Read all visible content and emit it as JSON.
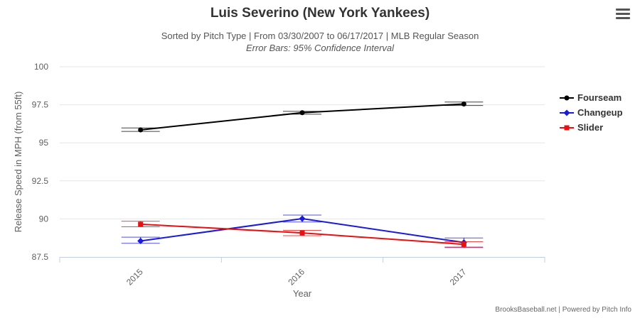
{
  "header": {
    "title": "Luis Severino (New York Yankees)",
    "subtitle": "Sorted by Pitch Type | From 03/30/2007 to 06/17/2017 | MLB Regular Season",
    "subtitle2": "Error Bars: 95% Confidence Interval"
  },
  "menu": {
    "icon": "hamburger-menu-icon"
  },
  "credits": "BrooksBaseball.net | Powered by Pitch Info",
  "chart_data": {
    "type": "line",
    "title": "Luis Severino (New York Yankees)",
    "xlabel": "Year",
    "ylabel": "Release Speed in MPH (from 55ft)",
    "categories": [
      "2015",
      "2016",
      "2017"
    ],
    "ylim": [
      87.5,
      100
    ],
    "yticks": [
      87.5,
      90,
      92.5,
      95,
      97.5,
      100
    ],
    "ytick_labels": [
      "87.5",
      "90",
      "92.5",
      "95",
      "97.5",
      "100"
    ],
    "grid": true,
    "legend_position": "right",
    "series": [
      {
        "name": "Fourseam",
        "color": "#000000",
        "marker": "circle",
        "values": [
          95.85,
          96.98,
          97.55
        ],
        "err_low": [
          95.75,
          96.88,
          97.45
        ],
        "err_high": [
          95.98,
          97.07,
          97.68
        ]
      },
      {
        "name": "Changeup",
        "color": "#1a1adb",
        "marker": "diamond",
        "values": [
          88.55,
          90.02,
          88.45
        ],
        "err_low": [
          88.4,
          89.8,
          88.15
        ],
        "err_high": [
          88.8,
          90.25,
          88.75
        ]
      },
      {
        "name": "Slider",
        "color": "#e81010",
        "marker": "square",
        "values": [
          89.65,
          89.08,
          88.33
        ],
        "err_low": [
          89.48,
          88.9,
          88.12
        ],
        "err_high": [
          89.85,
          89.25,
          88.5
        ]
      }
    ]
  }
}
